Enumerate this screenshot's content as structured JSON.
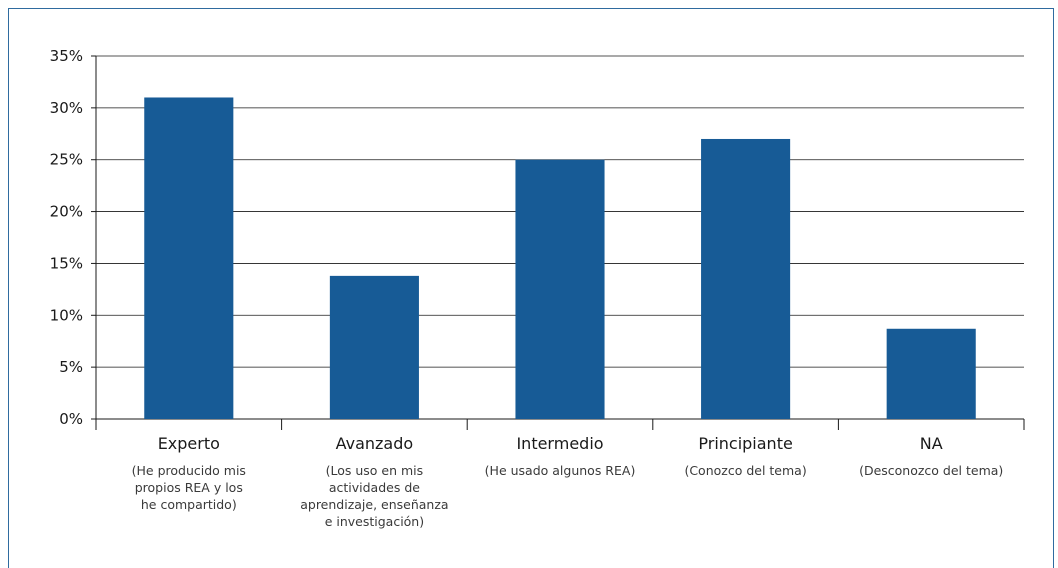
{
  "chart_data": {
    "type": "bar",
    "categories": [
      "Experto",
      "Avanzado",
      "Intermedio",
      "Principiante",
      "NA"
    ],
    "descriptions": [
      [
        "(He producido mis",
        "propios REA y los",
        "he compartido)"
      ],
      [
        "(Los uso en mis",
        "actividades de",
        "aprendizaje, enseñanza",
        "e investigación)"
      ],
      [
        "(He usado algunos REA)"
      ],
      [
        "(Conozco del tema)"
      ],
      [
        "(Desconozco del tema)"
      ]
    ],
    "values": [
      31,
      13.8,
      25,
      27,
      8.7
    ],
    "yticks": [
      "0%",
      "5%",
      "10%",
      "15%",
      "20%",
      "25%",
      "30%",
      "35%"
    ],
    "ylim": [
      0,
      35
    ],
    "grid": true,
    "bar_color": "#175b96",
    "title": "",
    "xlabel": "",
    "ylabel": ""
  }
}
